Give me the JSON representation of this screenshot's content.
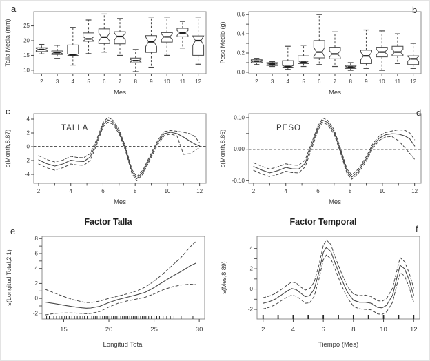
{
  "figure": {
    "background": "#ffffff",
    "line_color": "#474747",
    "text_color": "#3a3a3a",
    "frame_color": "#8c8c8c"
  },
  "chart_data": [
    {
      "id": "a",
      "letter": "a",
      "type": "boxplot",
      "xlabel": "Mes",
      "ylabel": "Talla Media (mm)",
      "ylim": [
        8.8,
        29.8
      ],
      "yticks": [
        10,
        15,
        20,
        25
      ],
      "ytick_labels": [
        "10",
        "15",
        "20",
        "25"
      ],
      "yticks_minor": [],
      "categories": [
        "2",
        "3",
        "4",
        "5",
        "6",
        "7",
        "8",
        "9",
        "10",
        "11",
        "12"
      ],
      "boxes": [
        {
          "lo": 15.5,
          "q1": 16.3,
          "med": 17.0,
          "q3": 17.6,
          "hi": 18.7
        },
        {
          "lo": 14.0,
          "q1": 15.3,
          "med": 15.9,
          "q3": 16.5,
          "hi": 18.4
        },
        {
          "lo": 11.7,
          "q1": 14.9,
          "med": 15.2,
          "q3": 18.5,
          "hi": 24.5
        },
        {
          "lo": 15.6,
          "q1": 19.8,
          "med": 20.6,
          "q3": 22.6,
          "hi": 27.0
        },
        {
          "lo": 16.1,
          "q1": 19.0,
          "med": 21.2,
          "q3": 24.0,
          "hi": 29.0
        },
        {
          "lo": 15.0,
          "q1": 18.9,
          "med": 21.4,
          "q3": 23.0,
          "hi": 27.5
        },
        {
          "lo": 9.5,
          "q1": 12.5,
          "med": 13.2,
          "q3": 14.1,
          "hi": 17.0
        },
        {
          "lo": 11.0,
          "q1": 16.0,
          "med": 19.6,
          "q3": 21.7,
          "hi": 28.0
        },
        {
          "lo": 15.0,
          "q1": 19.5,
          "med": 21.3,
          "q3": 22.7,
          "hi": 28.0
        },
        {
          "lo": 17.5,
          "q1": 21.3,
          "med": 22.6,
          "q3": 24.2,
          "hi": 26.5
        },
        {
          "lo": 12.0,
          "q1": 15.0,
          "med": 20.0,
          "q3": 21.6,
          "hi": 28.0
        }
      ]
    },
    {
      "id": "b",
      "letter": "b",
      "type": "boxplot",
      "xlabel": "Mes",
      "ylabel": "Peso Medio (g)",
      "ylim": [
        -0.015,
        0.63
      ],
      "yticks": [
        0.0,
        0.2,
        0.4,
        0.6
      ],
      "ytick_labels": [
        "0.0",
        "0.2",
        "0.4",
        "0.6"
      ],
      "yticks_minor": [
        0.1,
        0.3,
        0.5
      ],
      "categories": [
        "2",
        "3",
        "4",
        "5",
        "6",
        "7",
        "8",
        "9",
        "10",
        "11",
        "12"
      ],
      "boxes": [
        {
          "lo": 0.08,
          "q1": 0.1,
          "med": 0.115,
          "q3": 0.13,
          "hi": 0.145
        },
        {
          "lo": 0.06,
          "q1": 0.07,
          "med": 0.085,
          "q3": 0.1,
          "hi": 0.11
        },
        {
          "lo": 0.03,
          "q1": 0.05,
          "med": 0.06,
          "q3": 0.12,
          "hi": 0.27
        },
        {
          "lo": 0.06,
          "q1": 0.09,
          "med": 0.105,
          "q3": 0.17,
          "hi": 0.28
        },
        {
          "lo": 0.08,
          "q1": 0.15,
          "med": 0.21,
          "q3": 0.33,
          "hi": 0.6
        },
        {
          "lo": 0.06,
          "q1": 0.14,
          "med": 0.19,
          "q3": 0.26,
          "hi": 0.42
        },
        {
          "lo": 0.02,
          "q1": 0.04,
          "med": 0.055,
          "q3": 0.07,
          "hi": 0.1
        },
        {
          "lo": 0.04,
          "q1": 0.09,
          "med": 0.17,
          "q3": 0.23,
          "hi": 0.44
        },
        {
          "lo": 0.02,
          "q1": 0.16,
          "med": 0.21,
          "q3": 0.26,
          "hi": 0.43
        },
        {
          "lo": 0.09,
          "q1": 0.17,
          "med": 0.21,
          "q3": 0.27,
          "hi": 0.4
        },
        {
          "lo": 0.04,
          "q1": 0.08,
          "med": 0.14,
          "q3": 0.17,
          "hi": 0.3
        }
      ]
    },
    {
      "id": "c",
      "letter": "c",
      "type": "smooth",
      "inner_label": "TALLA",
      "xlabel": "Mes",
      "ylabel": "s(Month,8.87)",
      "xlim": [
        1.7,
        12.4
      ],
      "xticks": [
        2,
        4,
        6,
        8,
        10,
        12
      ],
      "xtick_labels": [
        "2",
        "4",
        "6",
        "8",
        "10",
        "12"
      ],
      "xticks_minor": [
        3,
        5,
        7,
        9,
        11
      ],
      "ylim": [
        -5.3,
        4.8
      ],
      "yticks": [
        -4,
        -2,
        0,
        2,
        4
      ],
      "ytick_labels": [
        "-4",
        "-2",
        "0",
        "2",
        "4"
      ],
      "yticks_minor": [],
      "zero_line": true,
      "x": [
        2,
        2.5,
        3,
        3.5,
        4,
        4.4,
        4.8,
        5.2,
        5.6,
        6,
        6.3,
        6.6,
        7,
        7.4,
        7.8,
        8.1,
        8.5,
        9,
        9.4,
        9.8,
        10.2,
        10.6,
        11,
        11.4,
        11.7,
        12
      ],
      "solid": [
        -1.9,
        -2.45,
        -2.8,
        -2.5,
        -1.95,
        -2.1,
        -2.15,
        -1.5,
        0.6,
        3.2,
        3.9,
        3.6,
        2.2,
        -0.3,
        -3.6,
        -4.65,
        -3.6,
        -1.2,
        0.6,
        1.9,
        2.1,
        1.9,
        1.4,
        0.8,
        0.4,
        0.1
      ],
      "upper": [
        -1.3,
        -1.85,
        -2.2,
        -1.95,
        -1.4,
        -1.55,
        -1.6,
        -1.0,
        1.0,
        3.5,
        4.25,
        3.9,
        2.5,
        0.0,
        -3.3,
        -4.35,
        -3.3,
        -0.9,
        0.9,
        2.2,
        2.35,
        2.25,
        2.1,
        1.9,
        1.5,
        0.55
      ],
      "lower": [
        -2.5,
        -3.05,
        -3.4,
        -3.05,
        -2.5,
        -2.65,
        -2.7,
        -2.0,
        0.2,
        2.9,
        3.55,
        3.3,
        1.9,
        -0.6,
        -3.9,
        -4.95,
        -3.9,
        -1.5,
        0.3,
        1.6,
        1.85,
        1.55,
        -1.1,
        -1.0,
        -0.55,
        -0.15
      ]
    },
    {
      "id": "d",
      "letter": "d",
      "type": "smooth",
      "inner_label": "PESO",
      "xlabel": "Mes",
      "ylabel": "s(Month,8.86)",
      "xlim": [
        1.7,
        12.4
      ],
      "xticks": [
        2,
        4,
        6,
        8,
        10,
        12
      ],
      "xtick_labels": [
        "2",
        "4",
        "6",
        "8",
        "10",
        "12"
      ],
      "xticks_minor": [
        3,
        5,
        7,
        9,
        11
      ],
      "ylim": [
        -0.108,
        0.113
      ],
      "yticks": [
        -0.1,
        0.0,
        0.1
      ],
      "ytick_labels": [
        "-0.10",
        "0.00",
        "0.10"
      ],
      "yticks_minor": [
        -0.05,
        0.05
      ],
      "zero_line": true,
      "x": [
        2,
        2.5,
        3,
        3.5,
        4,
        4.4,
        4.8,
        5.2,
        5.6,
        6,
        6.3,
        6.6,
        7,
        7.4,
        7.8,
        8.1,
        8.5,
        9,
        9.4,
        9.8,
        10.2,
        10.6,
        11,
        11.4,
        11.7,
        12
      ],
      "solid": [
        -0.055,
        -0.066,
        -0.075,
        -0.068,
        -0.058,
        -0.062,
        -0.063,
        -0.045,
        0.01,
        0.068,
        0.092,
        0.085,
        0.055,
        -0.005,
        -0.07,
        -0.088,
        -0.07,
        -0.03,
        0.01,
        0.035,
        0.046,
        0.049,
        0.048,
        0.042,
        0.033,
        0.01
      ],
      "upper": [
        -0.043,
        -0.054,
        -0.063,
        -0.056,
        -0.046,
        -0.05,
        -0.051,
        -0.034,
        0.02,
        0.075,
        0.099,
        0.092,
        0.062,
        0.002,
        -0.063,
        -0.081,
        -0.063,
        -0.023,
        0.017,
        0.042,
        0.053,
        0.058,
        0.062,
        0.06,
        0.052,
        0.03
      ],
      "lower": [
        -0.067,
        -0.078,
        -0.087,
        -0.08,
        -0.07,
        -0.074,
        -0.075,
        -0.056,
        0.0,
        0.061,
        0.085,
        0.078,
        0.048,
        -0.012,
        -0.077,
        -0.095,
        -0.077,
        -0.037,
        0.003,
        0.028,
        0.039,
        0.04,
        0.027,
        0.005,
        -0.013,
        -0.032
      ]
    },
    {
      "id": "e",
      "letter": "e",
      "type": "smooth",
      "title": "Factor Talla",
      "xlabel": "Longitud Total",
      "ylabel": "s(Longitud Total,2.1)",
      "xlim": [
        12.6,
        30.6
      ],
      "xticks": [
        15,
        20,
        25,
        30
      ],
      "xtick_labels": [
        "15",
        "20",
        "25",
        "30"
      ],
      "xticks_minor": [],
      "ylim": [
        -2.75,
        8.3
      ],
      "yticks": [
        -2,
        0,
        2,
        4,
        6,
        8
      ],
      "ytick_labels": [
        "-2",
        "0",
        "2",
        "4",
        "6",
        "8"
      ],
      "yticks_minor": [
        -1,
        1,
        3,
        5,
        7
      ],
      "zero_line": false,
      "x": [
        13,
        13.5,
        14,
        15,
        16,
        17,
        17.5,
        18,
        19,
        20,
        21,
        22,
        23,
        24,
        25,
        26,
        27,
        28,
        29,
        29.6
      ],
      "solid": [
        -0.5,
        -0.6,
        -0.7,
        -0.9,
        -1.1,
        -1.25,
        -1.3,
        -1.28,
        -1.05,
        -0.55,
        -0.15,
        0.15,
        0.45,
        0.8,
        1.45,
        2.2,
        2.95,
        3.6,
        4.35,
        4.7
      ],
      "upper": [
        1.2,
        0.95,
        0.7,
        0.25,
        -0.15,
        -0.45,
        -0.55,
        -0.55,
        -0.35,
        0.0,
        0.3,
        0.6,
        0.95,
        1.5,
        2.3,
        3.3,
        4.4,
        5.5,
        6.9,
        7.6
      ],
      "lower": [
        -2.2,
        -2.1,
        -2.0,
        -1.95,
        -1.95,
        -2.0,
        -2.05,
        -2.0,
        -1.75,
        -1.15,
        -0.65,
        -0.35,
        -0.1,
        0.15,
        0.6,
        1.15,
        1.55,
        1.8,
        1.9,
        1.85
      ],
      "rug": [
        13.1,
        13.4,
        13.9,
        14.2,
        14.5,
        14.8,
        15.1,
        15.3,
        15.6,
        15.9,
        16.2,
        16.5,
        16.8,
        17.1,
        17.3,
        17.6,
        17.9,
        18.1,
        18.3,
        18.5,
        18.7,
        18.9,
        19.1,
        19.3,
        19.5,
        19.7,
        19.9,
        20.1,
        20.3,
        20.5,
        20.7,
        20.9,
        21.1,
        21.3,
        21.5,
        21.7,
        21.9,
        22.1,
        22.3,
        22.5,
        22.7,
        22.9,
        23.1,
        23.3,
        23.5,
        23.7,
        23.9,
        24.1,
        24.4,
        24.7,
        25.0,
        25.3,
        25.6,
        26.0,
        26.4,
        26.8,
        27.2,
        28.0,
        29.3
      ]
    },
    {
      "id": "f",
      "letter": "f",
      "type": "smooth",
      "title": "Factor Temporal",
      "xlabel": "Tiempo (Mes)",
      "ylabel": "s(Mes,8.89)",
      "xlim": [
        1.6,
        12.4
      ],
      "xticks": [
        2,
        4,
        6,
        8,
        10,
        12
      ],
      "xtick_labels": [
        "2",
        "4",
        "6",
        "8",
        "10",
        "12"
      ],
      "xticks_minor": [],
      "ylim": [
        -2.95,
        5.2
      ],
      "yticks": [
        -2,
        0,
        2,
        4
      ],
      "ytick_labels": [
        "-2",
        "0",
        "2",
        "4"
      ],
      "yticks_minor": [
        -1,
        1,
        3
      ],
      "zero_line": false,
      "x": [
        2,
        2.4,
        2.8,
        3.2,
        3.6,
        3.9,
        4.2,
        4.5,
        4.8,
        5.1,
        5.4,
        5.7,
        6.0,
        6.2,
        6.5,
        6.8,
        7.2,
        7.6,
        8,
        8.4,
        8.8,
        9.2,
        9.6,
        9.9,
        10.2,
        10.6,
        10.9,
        11.1,
        11.4,
        11.7,
        12
      ],
      "solid": [
        -1.4,
        -1.25,
        -1.0,
        -0.6,
        -0.2,
        0.05,
        -0.05,
        -0.4,
        -0.75,
        -0.65,
        0.0,
        1.6,
        3.6,
        4.1,
        3.7,
        2.5,
        1.0,
        -0.3,
        -1.1,
        -1.3,
        -1.3,
        -1.4,
        -1.8,
        -1.85,
        -1.6,
        -0.6,
        1.2,
        2.35,
        2.0,
        0.9,
        -0.6
      ],
      "upper": [
        -0.85,
        -0.7,
        -0.45,
        -0.05,
        0.4,
        0.7,
        0.6,
        0.2,
        -0.1,
        0.05,
        0.7,
        2.3,
        4.3,
        4.85,
        4.4,
        3.1,
        1.6,
        0.25,
        -0.5,
        -0.65,
        -0.6,
        -0.75,
        -1.15,
        -1.2,
        -0.95,
        0.1,
        1.9,
        3.1,
        2.7,
        1.6,
        0.1
      ],
      "lower": [
        -1.95,
        -1.8,
        -1.55,
        -1.15,
        -0.8,
        -0.6,
        -0.7,
        -1.0,
        -1.4,
        -1.35,
        -0.7,
        0.9,
        2.9,
        3.35,
        3.0,
        1.9,
        0.4,
        -0.85,
        -1.7,
        -1.95,
        -2.0,
        -2.05,
        -2.45,
        -2.5,
        -2.25,
        -1.3,
        0.5,
        1.6,
        1.3,
        0.2,
        -1.3
      ],
      "rug": [
        2,
        3,
        4,
        5,
        6,
        7,
        8,
        9,
        10,
        11,
        12
      ]
    }
  ]
}
